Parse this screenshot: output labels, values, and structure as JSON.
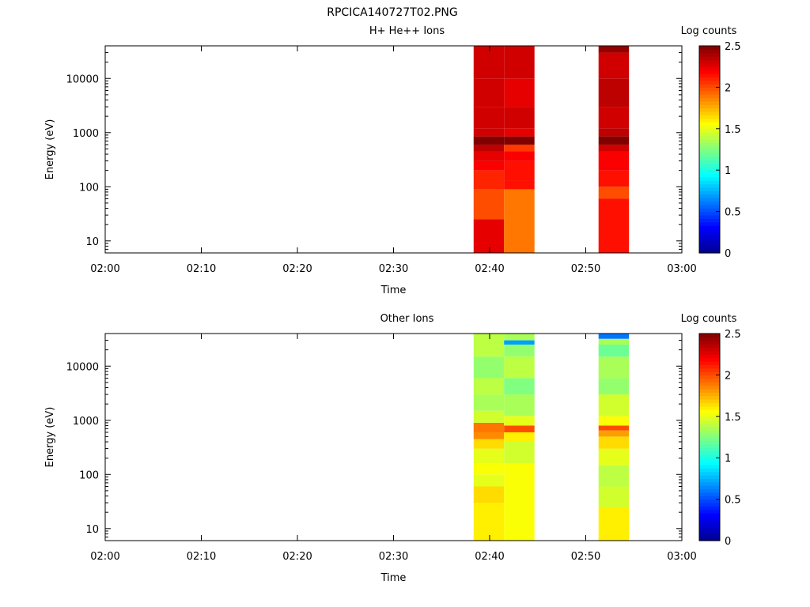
{
  "figure_title": "RPCICA140727T02.PNG",
  "colors": {
    "colormap_stops": [
      "#00008f",
      "#0000ff",
      "#0080ff",
      "#00ffff",
      "#80ff80",
      "#ffff00",
      "#ff8000",
      "#ff0000",
      "#800000"
    ],
    "axes": "#000000",
    "background": "#ffffff"
  },
  "chart_data": [
    {
      "type": "heatmap",
      "title": "H+ He++ Ions",
      "xlabel": "Time",
      "ylabel": "Energy (eV)",
      "x_ticks": [
        "02:00",
        "02:10",
        "02:20",
        "02:30",
        "02:40",
        "02:50",
        "03:00"
      ],
      "xlim": [
        "02:00",
        "03:00"
      ],
      "y_scale": "log",
      "ylim": [
        6,
        40000
      ],
      "y_ticks": [
        "10",
        "100",
        "1000",
        "10000"
      ],
      "colorbar": {
        "label": "Log counts",
        "range": [
          0,
          2.5
        ],
        "ticks": [
          "0",
          "0.5",
          "1",
          "1.5",
          "2",
          "2.5"
        ]
      },
      "columns": [
        {
          "t_start": "02:38:20",
          "t_end": "02:41:30",
          "bins": [
            [
              6,
              25,
              2.25
            ],
            [
              25,
              90,
              2.0
            ],
            [
              90,
              200,
              2.1
            ],
            [
              200,
              300,
              2.2
            ],
            [
              300,
              450,
              2.25
            ],
            [
              450,
              600,
              2.35
            ],
            [
              600,
              850,
              2.5
            ],
            [
              850,
              1200,
              2.3
            ],
            [
              1200,
              3000,
              2.3
            ],
            [
              3000,
              10000,
              2.3
            ],
            [
              10000,
              40000,
              2.3
            ]
          ]
        },
        {
          "t_start": "02:41:30",
          "t_end": "02:44:40",
          "bins": [
            [
              6,
              90,
              1.9
            ],
            [
              90,
              130,
              2.15
            ],
            [
              130,
              300,
              2.15
            ],
            [
              300,
              450,
              2.2
            ],
            [
              450,
              600,
              2.05
            ],
            [
              600,
              850,
              2.5
            ],
            [
              850,
              1200,
              2.25
            ],
            [
              1200,
              3000,
              2.3
            ],
            [
              3000,
              10000,
              2.25
            ],
            [
              10000,
              40000,
              2.3
            ]
          ]
        },
        {
          "t_start": "02:51:20",
          "t_end": "02:54:30",
          "bins": [
            [
              6,
              60,
              2.15
            ],
            [
              60,
              100,
              2.0
            ],
            [
              100,
              200,
              2.15
            ],
            [
              200,
              450,
              2.2
            ],
            [
              450,
              600,
              2.3
            ],
            [
              600,
              850,
              2.5
            ],
            [
              850,
              1200,
              2.35
            ],
            [
              1200,
              3000,
              2.3
            ],
            [
              3000,
              10000,
              2.35
            ],
            [
              10000,
              30000,
              2.3
            ],
            [
              30000,
              40000,
              2.45
            ]
          ]
        }
      ]
    },
    {
      "type": "heatmap",
      "title": "Other Ions",
      "xlabel": "Time",
      "ylabel": "Energy (eV)",
      "x_ticks": [
        "02:00",
        "02:10",
        "02:20",
        "02:30",
        "02:40",
        "02:50",
        "03:00"
      ],
      "xlim": [
        "02:00",
        "03:00"
      ],
      "y_scale": "log",
      "ylim": [
        6,
        40000
      ],
      "y_ticks": [
        "10",
        "100",
        "1000",
        "10000"
      ],
      "colorbar": {
        "label": "Log counts",
        "range": [
          0,
          2.5
        ],
        "ticks": [
          "0",
          "0.5",
          "1",
          "1.5",
          "2",
          "2.5"
        ]
      },
      "columns": [
        {
          "t_start": "02:38:20",
          "t_end": "02:41:30",
          "bins": [
            [
              6,
              30,
              1.6
            ],
            [
              30,
              60,
              1.65
            ],
            [
              60,
              100,
              1.5
            ],
            [
              100,
              160,
              1.55
            ],
            [
              160,
              300,
              1.5
            ],
            [
              300,
              450,
              1.65
            ],
            [
              450,
              600,
              1.85
            ],
            [
              600,
              900,
              1.9
            ],
            [
              900,
              1500,
              1.45
            ],
            [
              1500,
              3000,
              1.35
            ],
            [
              3000,
              6000,
              1.4
            ],
            [
              6000,
              15000,
              1.3
            ],
            [
              15000,
              40000,
              1.4
            ]
          ]
        },
        {
          "t_start": "02:41:30",
          "t_end": "02:44:40",
          "bins": [
            [
              6,
              160,
              1.55
            ],
            [
              160,
              400,
              1.45
            ],
            [
              400,
              600,
              1.6
            ],
            [
              600,
              800,
              2.0
            ],
            [
              800,
              1200,
              1.5
            ],
            [
              1200,
              3000,
              1.35
            ],
            [
              3000,
              6000,
              1.25
            ],
            [
              6000,
              15000,
              1.4
            ],
            [
              15000,
              25000,
              1.3
            ],
            [
              25000,
              30000,
              0.7
            ],
            [
              30000,
              40000,
              1.35
            ]
          ]
        },
        {
          "t_start": "02:51:20",
          "t_end": "02:54:30",
          "bins": [
            [
              6,
              25,
              1.6
            ],
            [
              25,
              60,
              1.45
            ],
            [
              60,
              150,
              1.4
            ],
            [
              150,
              300,
              1.5
            ],
            [
              300,
              500,
              1.65
            ],
            [
              500,
              650,
              1.8
            ],
            [
              650,
              800,
              2.0
            ],
            [
              800,
              1200,
              1.55
            ],
            [
              1200,
              3000,
              1.45
            ],
            [
              3000,
              6000,
              1.3
            ],
            [
              6000,
              15000,
              1.35
            ],
            [
              15000,
              25000,
              1.2
            ],
            [
              25000,
              32000,
              1.35
            ],
            [
              32000,
              40000,
              0.6
            ]
          ]
        }
      ]
    }
  ]
}
